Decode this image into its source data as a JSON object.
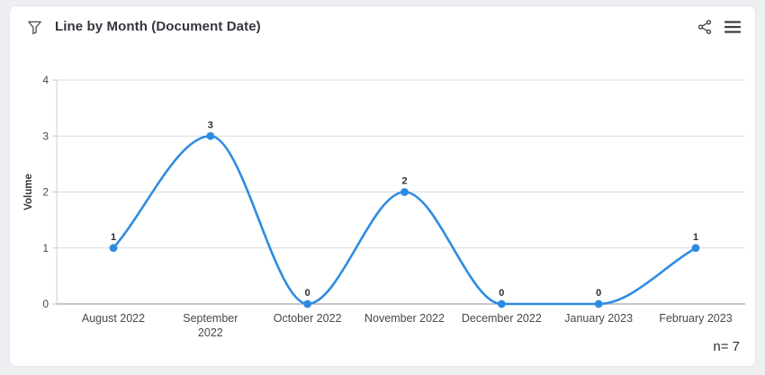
{
  "header": {
    "title": "Line by Month (Document Date)",
    "filter_icon": "funnel-icon",
    "share_icon": "share-icon",
    "menu_icon": "menu-icon"
  },
  "footer": {
    "n_label": "n= 7"
  },
  "colors": {
    "line": "#2e8be2",
    "point": "#2e8be2",
    "grid": "#d8d9df",
    "axis_bottom": "#9fa4ae",
    "axis_side": "#c9cdd4",
    "title_text": "#33373d",
    "label_text": "#45484d"
  },
  "chart_data": {
    "type": "line",
    "title": "Line by Month (Document Date)",
    "categories": [
      "August 2022",
      "September 2022",
      "October 2022",
      "November 2022",
      "December 2022",
      "January 2023",
      "February 2023"
    ],
    "values": [
      1,
      3,
      0,
      2,
      0,
      0,
      1
    ],
    "xlabel": "",
    "ylabel": "Volume",
    "ylim": [
      0,
      4
    ],
    "yticks": [
      0,
      1,
      2,
      3,
      4
    ],
    "grid": true,
    "legend": false,
    "smooth": "monotone",
    "point_labels": [
      1,
      3,
      0,
      2,
      0,
      0,
      1
    ],
    "n": 7
  }
}
